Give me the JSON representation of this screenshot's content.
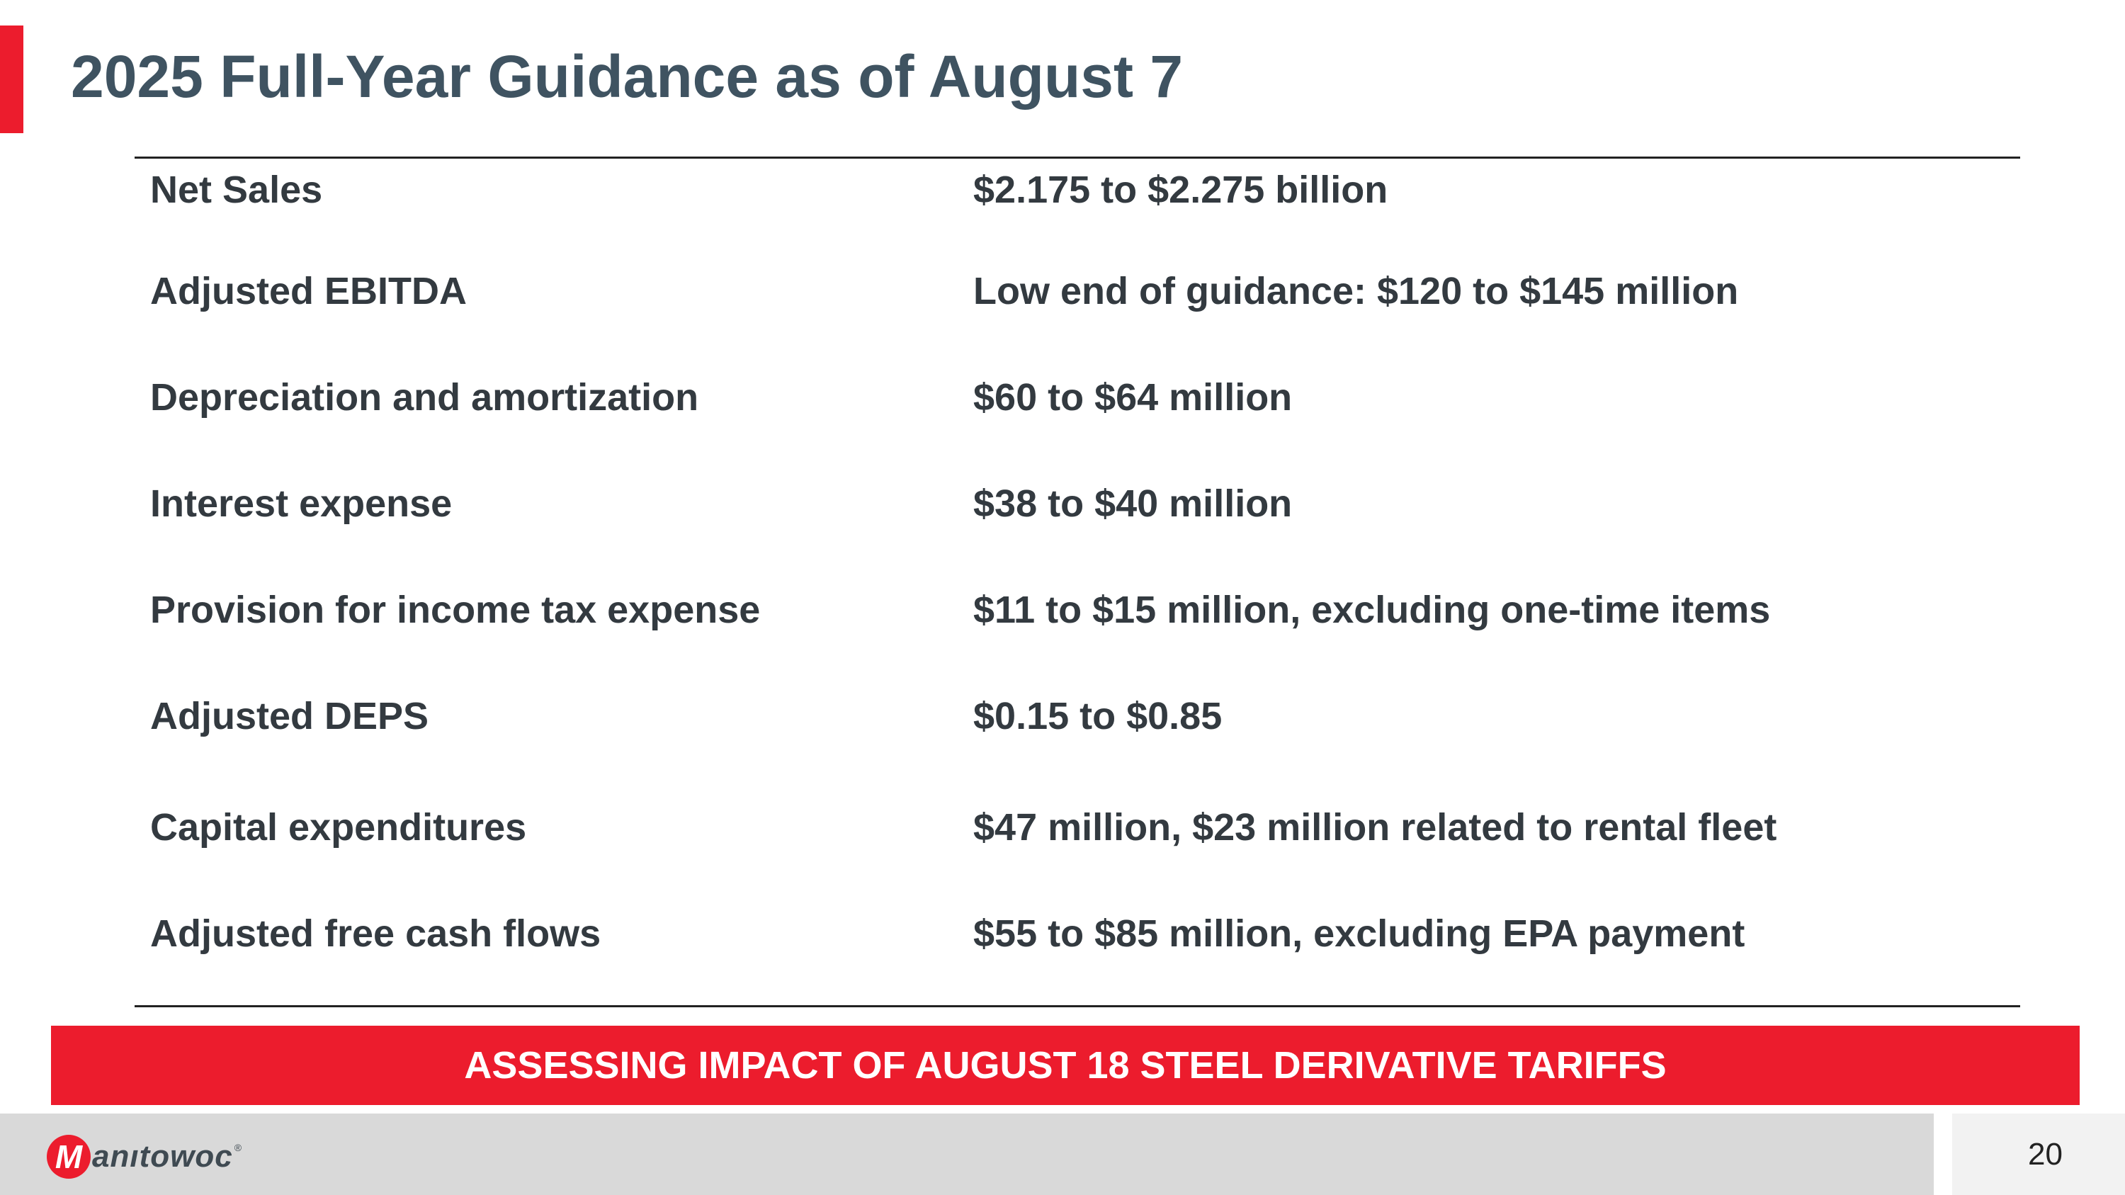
{
  "slide": {
    "title": "2025 Full-Year Guidance as of August 7",
    "page_number": "20"
  },
  "guidance": {
    "rows": [
      {
        "label": "Net Sales",
        "value": "$2.175 to $2.275 billion"
      },
      {
        "label": "Adjusted EBITDA",
        "value": "Low end of guidance: $120 to $145 million"
      },
      {
        "label": "Depreciation and amortization",
        "value": "$60 to $64 million"
      },
      {
        "label": "Interest expense",
        "value": "$38 to $40 million"
      },
      {
        "label": "Provision for income tax expense",
        "value": "$11 to $15 million, excluding one-time items"
      },
      {
        "label": "Adjusted DEPS",
        "value": "$0.15 to $0.85"
      },
      {
        "label": "Capital expenditures",
        "value": "$47 million, $23 million related to rental fleet"
      },
      {
        "label": "Adjusted free cash flows",
        "value": "$55 to $85 million, excluding EPA payment"
      }
    ]
  },
  "banner": {
    "text": "ASSESSING IMPACT OF AUGUST 18 STEEL DERIVATIVE TARIFFS"
  },
  "footer": {
    "logo_initial": "M",
    "logo_text": "anıtowoc",
    "logo_trademark": "®"
  },
  "colors": {
    "accent": "#ec1c2d",
    "title": "#3f5361",
    "text": "#333a40",
    "footer_bar": "#d9d9d9",
    "page_box": "#f2f2f2"
  }
}
